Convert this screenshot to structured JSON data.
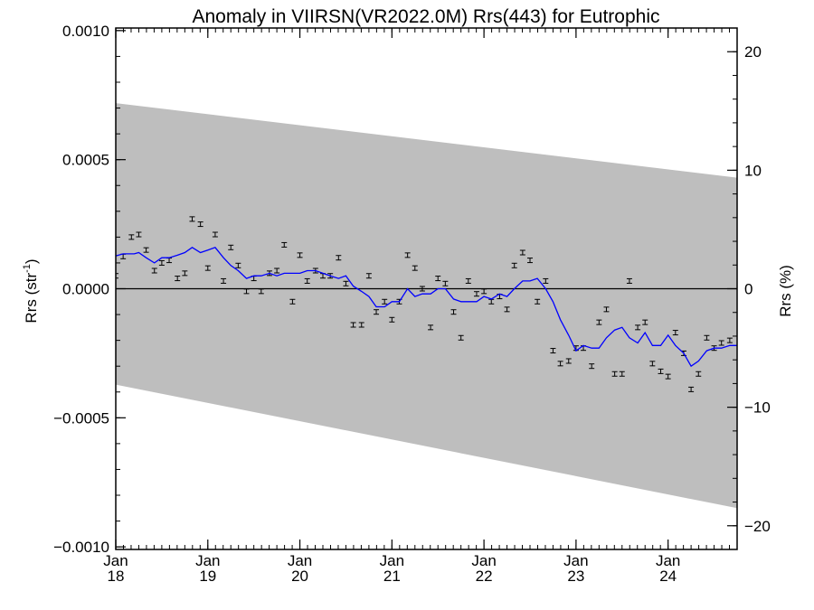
{
  "chart_data": {
    "type": "line",
    "title": "Anomaly in VIIRSN(VR2022.0M) Rrs(443) for Eutrophic",
    "ylabel_left": "Rrs (str",
    "ylabel_left_sup": "-1",
    "ylabel_left_close": ")",
    "ylabel_right": "Rrs (%)",
    "xlim": [
      2018.0,
      2024.75
    ],
    "ylim": [
      -0.00101,
      0.00101
    ],
    "ylim_right": [
      -22,
      22
    ],
    "y_ticks": [
      {
        "value": 0.001,
        "label": "0.0010"
      },
      {
        "value": 0.0005,
        "label": "0.0005"
      },
      {
        "value": 0.0,
        "label": "0.0000"
      },
      {
        "value": -0.0005,
        "label": "−0.0005"
      },
      {
        "value": -0.001,
        "label": "−0.0010"
      }
    ],
    "y_ticks_right": [
      {
        "value": 20,
        "label": "20"
      },
      {
        "value": 10,
        "label": "10"
      },
      {
        "value": 0,
        "label": "0"
      },
      {
        "value": -10,
        "label": "−10"
      },
      {
        "value": -20,
        "label": "−20"
      }
    ],
    "x_ticks": [
      {
        "value": 2018.0,
        "month": "Jan",
        "year": "18"
      },
      {
        "value": 2019.0,
        "month": "Jan",
        "year": "19"
      },
      {
        "value": 2020.0,
        "month": "Jan",
        "year": "20"
      },
      {
        "value": 2021.0,
        "month": "Jan",
        "year": "21"
      },
      {
        "value": 2022.0,
        "month": "Jan",
        "year": "22"
      },
      {
        "value": 2023.0,
        "month": "Jan",
        "year": "23"
      },
      {
        "value": 2024.0,
        "month": "Jan",
        "year": "24"
      }
    ],
    "band": {
      "x": [
        2017.98,
        2024.75
      ],
      "upper": [
        0.00072,
        0.00043
      ],
      "lower": [
        -0.00037,
        -0.00085
      ]
    },
    "zero_line": 0.0,
    "series": [
      {
        "kind": "monthly-points-with-error-bars",
        "error": 6e-06,
        "x": [
          2018.0,
          2018.08,
          2018.17,
          2018.25,
          2018.33,
          2018.42,
          2018.5,
          2018.58,
          2018.67,
          2018.75,
          2018.83,
          2018.92,
          2019.0,
          2019.08,
          2019.17,
          2019.25,
          2019.33,
          2019.42,
          2019.5,
          2019.58,
          2019.67,
          2019.75,
          2019.83,
          2019.92,
          2020.0,
          2020.08,
          2020.17,
          2020.25,
          2020.33,
          2020.42,
          2020.5,
          2020.58,
          2020.67,
          2020.75,
          2020.83,
          2020.92,
          2021.0,
          2021.08,
          2021.17,
          2021.25,
          2021.33,
          2021.42,
          2021.5,
          2021.58,
          2021.67,
          2021.75,
          2021.83,
          2021.92,
          2022.0,
          2022.08,
          2022.17,
          2022.25,
          2022.33,
          2022.42,
          2022.5,
          2022.58,
          2022.67,
          2022.75,
          2022.83,
          2022.92,
          2023.0,
          2023.08,
          2023.17,
          2023.25,
          2023.33,
          2023.42,
          2023.5,
          2023.58,
          2023.67,
          2023.75,
          2023.83,
          2023.92,
          2024.0,
          2024.08,
          2024.17,
          2024.25,
          2024.33,
          2024.42,
          2024.5,
          2024.58,
          2024.67
        ],
        "y": [
          5e-05,
          0.000125,
          0.0002,
          0.00021,
          0.00015,
          7e-05,
          0.0001,
          0.00011,
          4e-05,
          6e-05,
          0.00027,
          0.00025,
          8e-05,
          0.00021,
          3e-05,
          0.00016,
          9e-05,
          -1e-05,
          4e-05,
          -1e-05,
          6e-05,
          7e-05,
          0.00017,
          -5e-05,
          0.00013,
          3e-05,
          7e-05,
          5e-05,
          5e-05,
          0.00012,
          2e-05,
          -0.00014,
          -0.00014,
          5e-05,
          -9e-05,
          -5e-05,
          -0.00012,
          -5e-05,
          0.00013,
          8e-05,
          0.0,
          -0.00015,
          4e-05,
          2e-05,
          -9e-05,
          -0.00019,
          3e-05,
          -2e-05,
          -1e-05,
          -5e-05,
          -3e-05,
          -8e-05,
          9e-05,
          0.00014,
          0.00011,
          -5e-05,
          3e-05,
          -0.00024,
          -0.00029,
          -0.00028,
          -0.00023,
          -0.00023,
          -0.0003,
          -0.00013,
          -8e-05,
          -0.00033,
          -0.00033,
          3e-05,
          -0.00015,
          -0.00013,
          -0.00029,
          -0.00032,
          -0.00034,
          -0.00017,
          -0.00025,
          -0.00039,
          -0.00033,
          -0.00019,
          -0.00023,
          -0.00021,
          -0.0002
        ]
      },
      {
        "kind": "running-mean",
        "color": "#0000ff",
        "x": [
          2017.98,
          2018.08,
          2018.2,
          2018.25,
          2018.33,
          2018.42,
          2018.5,
          2018.58,
          2018.67,
          2018.75,
          2018.83,
          2018.92,
          2019.0,
          2019.08,
          2019.17,
          2019.25,
          2019.33,
          2019.42,
          2019.5,
          2019.58,
          2019.67,
          2019.75,
          2019.83,
          2019.92,
          2020.0,
          2020.08,
          2020.17,
          2020.25,
          2020.33,
          2020.42,
          2020.5,
          2020.58,
          2020.67,
          2020.75,
          2020.83,
          2020.92,
          2021.0,
          2021.08,
          2021.17,
          2021.25,
          2021.33,
          2021.42,
          2021.5,
          2021.58,
          2021.67,
          2021.75,
          2021.83,
          2021.92,
          2022.0,
          2022.08,
          2022.17,
          2022.25,
          2022.33,
          2022.42,
          2022.5,
          2022.58,
          2022.67,
          2022.75,
          2022.83,
          2022.92,
          2023.0,
          2023.08,
          2023.17,
          2023.25,
          2023.33,
          2023.42,
          2023.5,
          2023.58,
          2023.67,
          2023.75,
          2023.83,
          2023.92,
          2024.0,
          2024.08,
          2024.17,
          2024.25,
          2024.33,
          2024.42,
          2024.5,
          2024.58,
          2024.67,
          2024.75
        ],
        "y": [
          0.000125,
          0.000135,
          0.000135,
          0.00014,
          0.00012,
          0.0001,
          0.00012,
          0.00012,
          0.00013,
          0.00014,
          0.00016,
          0.00014,
          0.00015,
          0.00016,
          0.00012,
          9e-05,
          7e-05,
          4e-05,
          5e-05,
          5e-05,
          6e-05,
          5e-05,
          6e-05,
          6e-05,
          6e-05,
          7e-05,
          7e-05,
          6e-05,
          5e-05,
          4e-05,
          5e-05,
          1e-05,
          -1e-05,
          -3e-05,
          -7e-05,
          -7e-05,
          -5e-05,
          -5e-05,
          0.0,
          -3e-05,
          -2e-05,
          -2e-05,
          0.0,
          0.0,
          -4e-05,
          -5e-05,
          -5e-05,
          -5e-05,
          -3e-05,
          -4e-05,
          -2e-05,
          -3e-05,
          0.0,
          3e-05,
          3e-05,
          4e-05,
          0.0,
          -5e-05,
          -0.00012,
          -0.00018,
          -0.00024,
          -0.00022,
          -0.00023,
          -0.00023,
          -0.00019,
          -0.00016,
          -0.00015,
          -0.00019,
          -0.00021,
          -0.00017,
          -0.00022,
          -0.00022,
          -0.00018,
          -0.00022,
          -0.00025,
          -0.0003,
          -0.00028,
          -0.00024,
          -0.00023,
          -0.00023,
          -0.00022,
          -0.00022
        ]
      }
    ]
  }
}
